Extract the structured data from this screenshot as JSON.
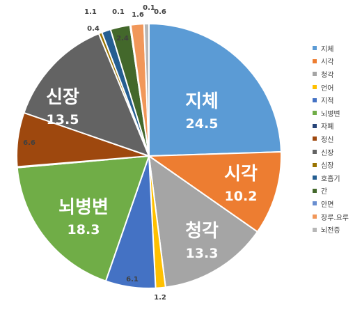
{
  "chart_data": {
    "type": "pie",
    "title": "",
    "legend_position": "right",
    "start_angle_deg": 0,
    "direction": "clockwise",
    "categories": [
      "지체",
      "시각",
      "청각",
      "언어",
      "지적",
      "뇌병변",
      "자폐",
      "정신",
      "신장",
      "심장",
      "호흡기",
      "간",
      "안면",
      "장루.요루",
      "뇌전증"
    ],
    "values": [
      24.5,
      10.2,
      13.3,
      1.2,
      6.1,
      18.3,
      0.1,
      6.6,
      13.5,
      0.4,
      1.1,
      2.4,
      0.1,
      1.6,
      0.6
    ],
    "value_labels": [
      "24.5",
      "10.2",
      "13.3",
      "1.2",
      "6.1",
      "18.3",
      "0.1",
      "6.6",
      "13.5",
      "0.4",
      "1.1",
      "2.4",
      "0.1",
      "1.6",
      "0.6"
    ],
    "colors": [
      "#5B9BD5",
      "#ED7D31",
      "#A5A5A5",
      "#FFC000",
      "#4472C4",
      "#70AD47",
      "#264478",
      "#9E480E",
      "#636363",
      "#997300",
      "#255E91",
      "#43682B",
      "#698ED0",
      "#F1975A",
      "#B7B7B7"
    ],
    "big_labels": [
      0,
      1,
      2,
      5,
      8
    ]
  }
}
